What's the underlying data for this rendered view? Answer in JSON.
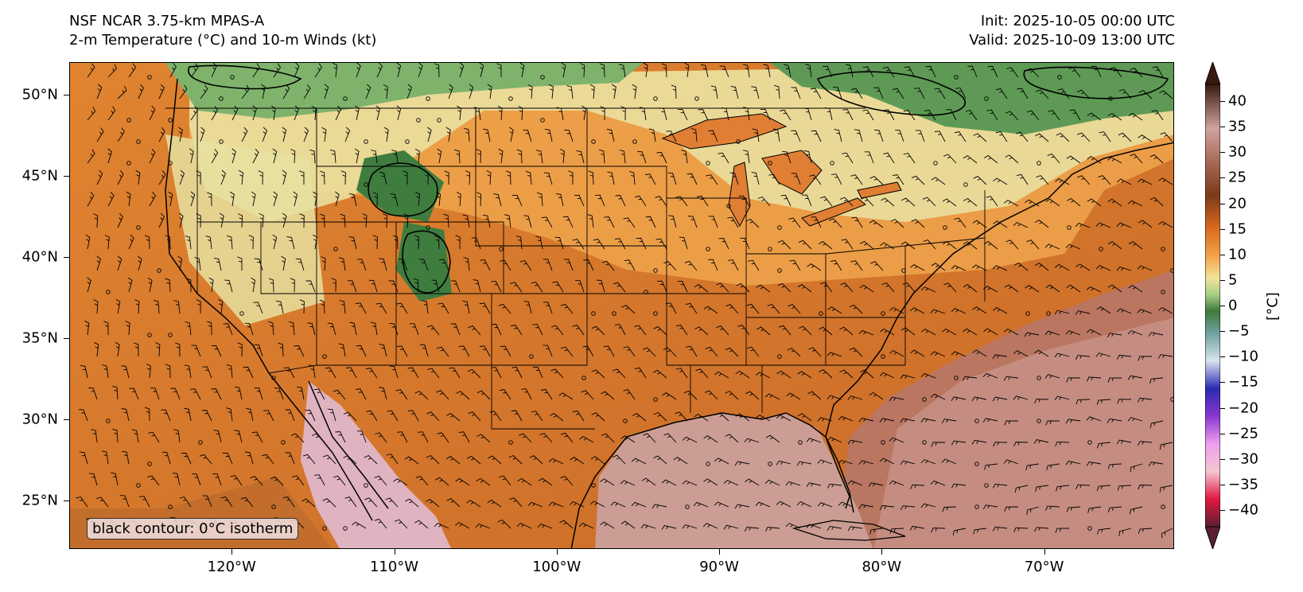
{
  "header": {
    "left_line1": "NSF NCAR 3.75-km MPAS-A",
    "left_line2": "2-m Temperature (°C) and 10-m Winds (kt)",
    "right_line1": "Init: 2025-10-05 00:00 UTC",
    "right_line2": "Valid: 2025-10-09 13:00 UTC"
  },
  "map": {
    "projection": "plate-carree",
    "lon_range": [
      -130,
      -62
    ],
    "lat_range": [
      22,
      52
    ],
    "lat_ticks": [
      {
        "value": 50,
        "label": "50°N"
      },
      {
        "value": 45,
        "label": "45°N"
      },
      {
        "value": 40,
        "label": "40°N"
      },
      {
        "value": 35,
        "label": "35°N"
      },
      {
        "value": 30,
        "label": "30°N"
      },
      {
        "value": 25,
        "label": "25°N"
      }
    ],
    "lon_ticks": [
      {
        "value": -120,
        "label": "120°W"
      },
      {
        "value": -110,
        "label": "110°W"
      },
      {
        "value": -100,
        "label": "100°W"
      },
      {
        "value": -90,
        "label": "90°W"
      },
      {
        "value": -80,
        "label": "80°W"
      },
      {
        "value": -70,
        "label": "70°W"
      }
    ],
    "annotation": "black contour: 0°C isotherm",
    "field": "2-m temperature, filled",
    "overlay": "10-m wind barbs",
    "colors": {
      "ocean_warm": "#cf9a8c",
      "land_warm": "#d6782c",
      "mild": "#f1b75a",
      "cool": "#e8e2a0",
      "cold": "#6aa35c",
      "gulf_hot": "#c89a95"
    }
  },
  "colorbar": {
    "unit_label": "[°C]",
    "extend": "both",
    "ticks": [
      "40",
      "35",
      "30",
      "25",
      "20",
      "15",
      "10",
      "5",
      "0",
      "−5",
      "−10",
      "−15",
      "−20",
      "−25",
      "−30",
      "−35",
      "−40"
    ],
    "range": [
      -40,
      40
    ],
    "stops": [
      {
        "value": 40,
        "color": "#3a1a10"
      },
      {
        "value": 32,
        "color": "#cfa3a0"
      },
      {
        "value": 26,
        "color": "#a76a55"
      },
      {
        "value": 20,
        "color": "#7a3a1a"
      },
      {
        "value": 14,
        "color": "#d96a1c"
      },
      {
        "value": 9,
        "color": "#f2a24a"
      },
      {
        "value": 5,
        "color": "#f5e39a"
      },
      {
        "value": 2,
        "color": "#a9cf86"
      },
      {
        "value": -1,
        "color": "#3e7b3a"
      },
      {
        "value": -5,
        "color": "#6fa0a0"
      },
      {
        "value": -10,
        "color": "#d9e4ef"
      },
      {
        "value": -15,
        "color": "#2b2bb0"
      },
      {
        "value": -20,
        "color": "#8a36d0"
      },
      {
        "value": -25,
        "color": "#ee9fee"
      },
      {
        "value": -30,
        "color": "#f4c6d2"
      },
      {
        "value": -35,
        "color": "#e01840"
      },
      {
        "value": -40,
        "color": "#5a2030"
      }
    ]
  }
}
